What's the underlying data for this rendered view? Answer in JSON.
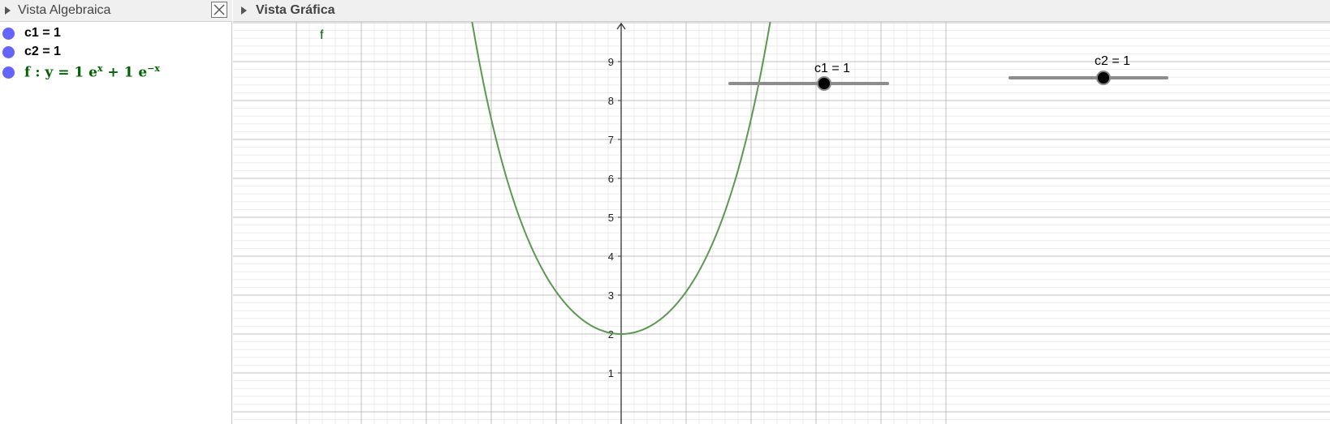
{
  "algebra_view": {
    "title": "Vista Algebraica",
    "items": [
      {
        "text": "c1 = 1",
        "color": "#6464ff"
      },
      {
        "text": "c2 = 1",
        "color": "#6464ff"
      },
      {
        "prefix": "f : y = 1 e",
        "exp1": "x",
        "middle": " + 1 e",
        "exp2": "−x",
        "color": "#006400"
      }
    ]
  },
  "graphics_view": {
    "title": "Vista Gráfica",
    "y_ticks": [
      "1",
      "2",
      "3",
      "4",
      "5",
      "6",
      "7",
      "8",
      "9"
    ],
    "function_label": "f",
    "function_color": "#5a9a50",
    "sliders": [
      {
        "label": "c1 = 1",
        "value": 1
      },
      {
        "label": "c2 = 1",
        "value": 1
      }
    ]
  },
  "chart_data": {
    "type": "line",
    "series": [
      {
        "name": "f",
        "expression": "y = 1 e^x + 1 e^(-x)"
      }
    ],
    "xlim": [
      -5,
      4.7
    ],
    "ylim": [
      -0.4,
      9.9
    ],
    "grid": true
  }
}
